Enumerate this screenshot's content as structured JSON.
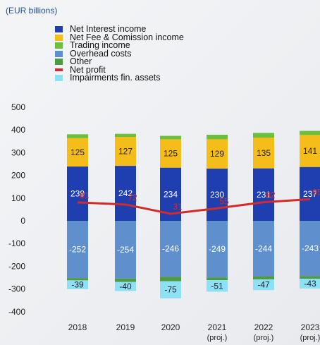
{
  "chart_data": {
    "type": "bar",
    "unit_label": "(EUR billions)",
    "categories": [
      "2018",
      "2019",
      "2020",
      "2021",
      "2022",
      "2023"
    ],
    "category_sublabels": [
      "",
      "",
      "",
      "(proj.)",
      "(proj.)",
      "(proj.)"
    ],
    "ylim": [
      -400,
      500
    ],
    "yticks": [
      500,
      400,
      300,
      200,
      100,
      0,
      -100,
      -200,
      -300,
      -400
    ],
    "stacked_series": [
      {
        "name": "Net Interest income",
        "color": "#1f3fb0",
        "values": [
          239,
          242,
          234,
          230,
          231,
          237
        ],
        "labels": [
          "239",
          "242",
          "234",
          "230",
          "231",
          "237"
        ]
      },
      {
        "name": "Net Fee & Comission income",
        "color": "#f5bd1a",
        "values": [
          125,
          127,
          125,
          129,
          135,
          141
        ],
        "labels": [
          "125",
          "127",
          "125",
          "129",
          "135",
          "141"
        ]
      },
      {
        "name": "Trading income",
        "color": "#6cbf3b",
        "values": [
          17,
          14,
          15,
          20,
          21,
          18
        ]
      },
      {
        "name": "Overhead costs",
        "color": "#5f8fcc",
        "values": [
          -252,
          -254,
          -246,
          -249,
          -244,
          -243
        ],
        "labels": [
          "-252",
          "-254",
          "-246",
          "-249",
          "-244",
          "-243"
        ]
      },
      {
        "name": "Other",
        "color": "#4f9a45",
        "values": [
          -10,
          -15,
          -20,
          -12,
          -14,
          -12
        ]
      },
      {
        "name": "Impairments fin. assets",
        "color": "#8ee0f5",
        "values": [
          -39,
          -40,
          -75,
          -51,
          -47,
          -43
        ],
        "labels": [
          "-39",
          "-40",
          "-75",
          "-51",
          "-47",
          "-43"
        ]
      }
    ],
    "line_series": {
      "name": "Net profit",
      "color": "#d42a2a",
      "values": [
        81,
        72,
        31,
        55,
        82,
        95
      ],
      "labels": [
        "81",
        "72",
        "31",
        "55",
        "82",
        "95"
      ]
    },
    "legend_order": [
      "Net Interest income",
      "Net Fee & Comission income",
      "Trading income",
      "Overhead costs",
      "Other",
      "Net profit",
      "Impairments fin. assets"
    ],
    "grid": false
  }
}
